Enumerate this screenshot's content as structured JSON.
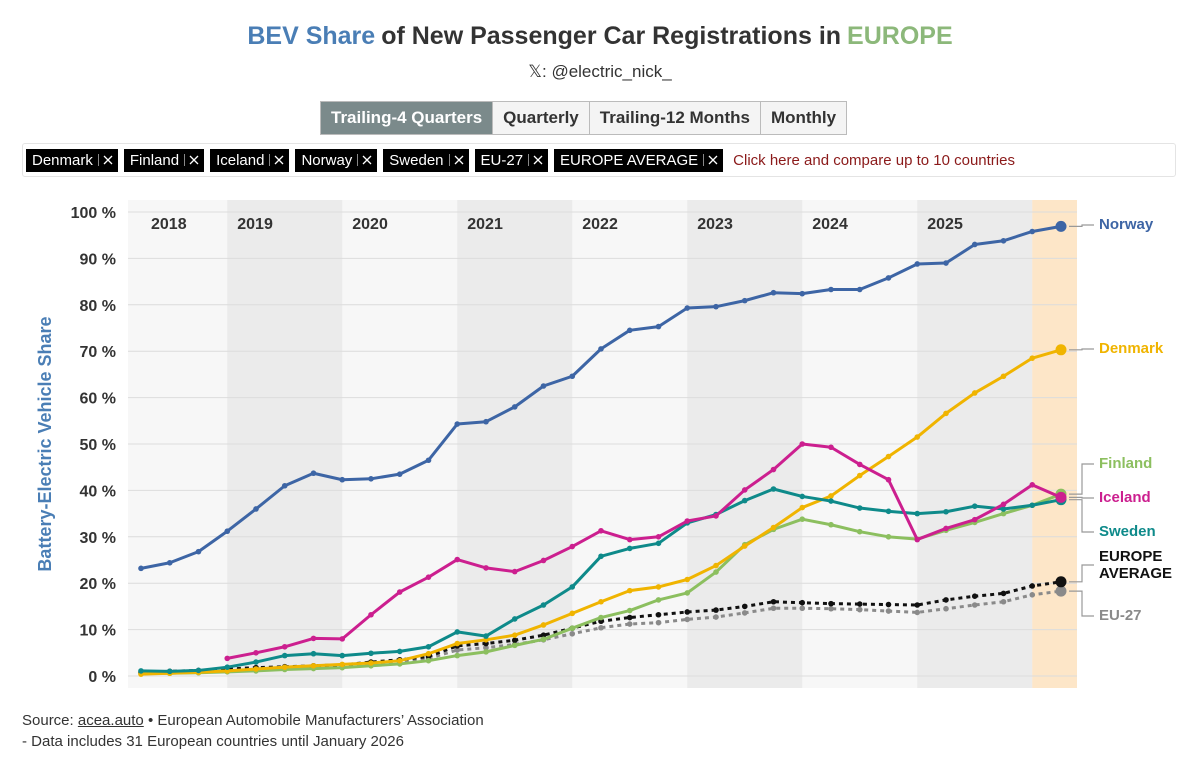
{
  "header": {
    "title_parts": [
      "BEV Share",
      "of New Passenger Car Registrations in",
      "EUROPE"
    ],
    "subtitle": "𝕏: @electric_nick_"
  },
  "controls": {
    "buttons": [
      "Trailing-4 Quarters",
      "Quarterly",
      "Trailing-12 Months",
      "Monthly"
    ],
    "active_button": 0,
    "compare_link": "Click here and compare up to 10 countries"
  },
  "chart_data": {
    "type": "line",
    "y_label": "Battery-Electric Vehicle Share",
    "year_labels": [
      2018,
      2019,
      2020,
      2021,
      2022,
      2023,
      2024,
      2025
    ],
    "categories": [
      null,
      null,
      null,
      null,
      null,
      null,
      null,
      null,
      null,
      null,
      null,
      null,
      null,
      null,
      null,
      null,
      null,
      null,
      null,
      null,
      null,
      null,
      null,
      null,
      null,
      null,
      null,
      null,
      null,
      null,
      null,
      null,
      null
    ],
    "ylim": [
      0,
      100
    ],
    "yticks": [
      {
        "value": 0,
        "label": "0 %"
      },
      {
        "value": 10,
        "label": "10 %"
      },
      {
        "value": 20,
        "label": "20 %"
      },
      {
        "value": 30,
        "label": "30 %"
      },
      {
        "value": 40,
        "label": "40 %"
      },
      {
        "value": 50,
        "label": "50 %"
      },
      {
        "value": 60,
        "label": "60 %"
      },
      {
        "value": 70,
        "label": "70 %"
      },
      {
        "value": 80,
        "label": "80 %"
      },
      {
        "value": 90,
        "label": "90 %"
      },
      {
        "value": 100,
        "label": "100 %"
      }
    ],
    "grid": true,
    "series": [
      {
        "name": "Denmark",
        "color": "#f0b400",
        "dashed": false,
        "values": [
          0.4,
          0.6,
          0.8,
          1.1,
          1.5,
          1.9,
          2.2,
          2.5,
          2.8,
          3.3,
          4.8,
          7,
          7.8,
          8.8,
          11,
          13.5,
          16,
          18.4,
          19.2,
          20.8,
          23.8,
          28,
          32,
          36.3,
          38.8,
          43.2,
          47.3,
          51.5,
          56.6,
          61,
          64.6,
          68.5,
          70.3
        ]
      },
      {
        "name": "Finland",
        "color": "#8cbf5f",
        "dashed": false,
        "values": [
          0.5,
          0.6,
          0.7,
          0.9,
          1.1,
          1.4,
          1.6,
          1.8,
          2.2,
          2.6,
          3.3,
          4.4,
          5.2,
          6.6,
          7.9,
          10.3,
          12.6,
          14.1,
          16.4,
          17.9,
          22.4,
          28.3,
          31.6,
          33.8,
          32.6,
          31.1,
          30,
          29.5,
          31.4,
          33.1,
          35,
          36.8,
          39.2
        ]
      },
      {
        "name": "Iceland",
        "color": "#cc1f8f",
        "dashed": false,
        "values": [
          null,
          null,
          null,
          3.8,
          5,
          6.3,
          8.1,
          8,
          13.2,
          18.1,
          21.3,
          25.1,
          23.3,
          22.5,
          24.9,
          27.9,
          31.3,
          29.4,
          30,
          33.4,
          34.5,
          40.1,
          44.5,
          50,
          49.3,
          45.6,
          42.3,
          29.4,
          31.8,
          33.7,
          37,
          41.2,
          38.5
        ]
      },
      {
        "name": "Norway",
        "color": "#3d65a5",
        "dashed": false,
        "values": [
          23.2,
          24.4,
          26.8,
          31.2,
          36,
          41,
          43.7,
          42.3,
          42.5,
          43.5,
          46.5,
          54.3,
          54.8,
          58,
          62.5,
          64.6,
          70.5,
          74.5,
          75.3,
          79.3,
          79.6,
          80.9,
          82.6,
          82.4,
          83.3,
          83.3,
          85.8,
          88.8,
          89,
          93,
          93.8,
          95.8,
          96.9
        ]
      },
      {
        "name": "Sweden",
        "color": "#0e8a8a",
        "dashed": false,
        "values": [
          1.1,
          1,
          1.2,
          1.9,
          3,
          4.4,
          4.8,
          4.4,
          4.9,
          5.3,
          6.3,
          9.5,
          8.6,
          12.3,
          15.3,
          19.2,
          25.8,
          27.5,
          28.6,
          33,
          34.8,
          37.8,
          40.3,
          38.7,
          37.7,
          36.2,
          35.5,
          35,
          35.4,
          36.6,
          36,
          36.8,
          38
        ]
      },
      {
        "name": "EU-27",
        "color": "#8a8a8a",
        "dashed": true,
        "values": [
          0.7,
          0.9,
          1,
          1.3,
          1.6,
          1.8,
          2,
          2.2,
          2.6,
          3.1,
          3.8,
          5.6,
          6.1,
          6.8,
          7.8,
          9.1,
          10.4,
          11.2,
          11.5,
          12.2,
          12.7,
          13.6,
          14.6,
          14.6,
          14.5,
          14.3,
          14,
          13.7,
          14.5,
          15.3,
          16,
          17.5,
          18.3
        ]
      },
      {
        "name": "EUROPE AVERAGE",
        "color": "#111111",
        "dashed": true,
        "values": [
          0.8,
          1,
          1.2,
          1.5,
          1.8,
          2,
          2.2,
          2.4,
          3,
          3.5,
          4.2,
          6.5,
          7,
          7.7,
          8.8,
          10.3,
          11.8,
          12.6,
          13.2,
          13.8,
          14.2,
          15,
          16,
          15.8,
          15.6,
          15.5,
          15.4,
          15.3,
          16.4,
          17.2,
          17.8,
          19.4,
          20.3
        ]
      }
    ]
  },
  "footer": {
    "source_label": "Source:",
    "source_link": "acea.auto",
    "source_rest": "• European Automobile Manufacturers’ Association",
    "note": "- Data includes 31 European countries until January 2026"
  }
}
